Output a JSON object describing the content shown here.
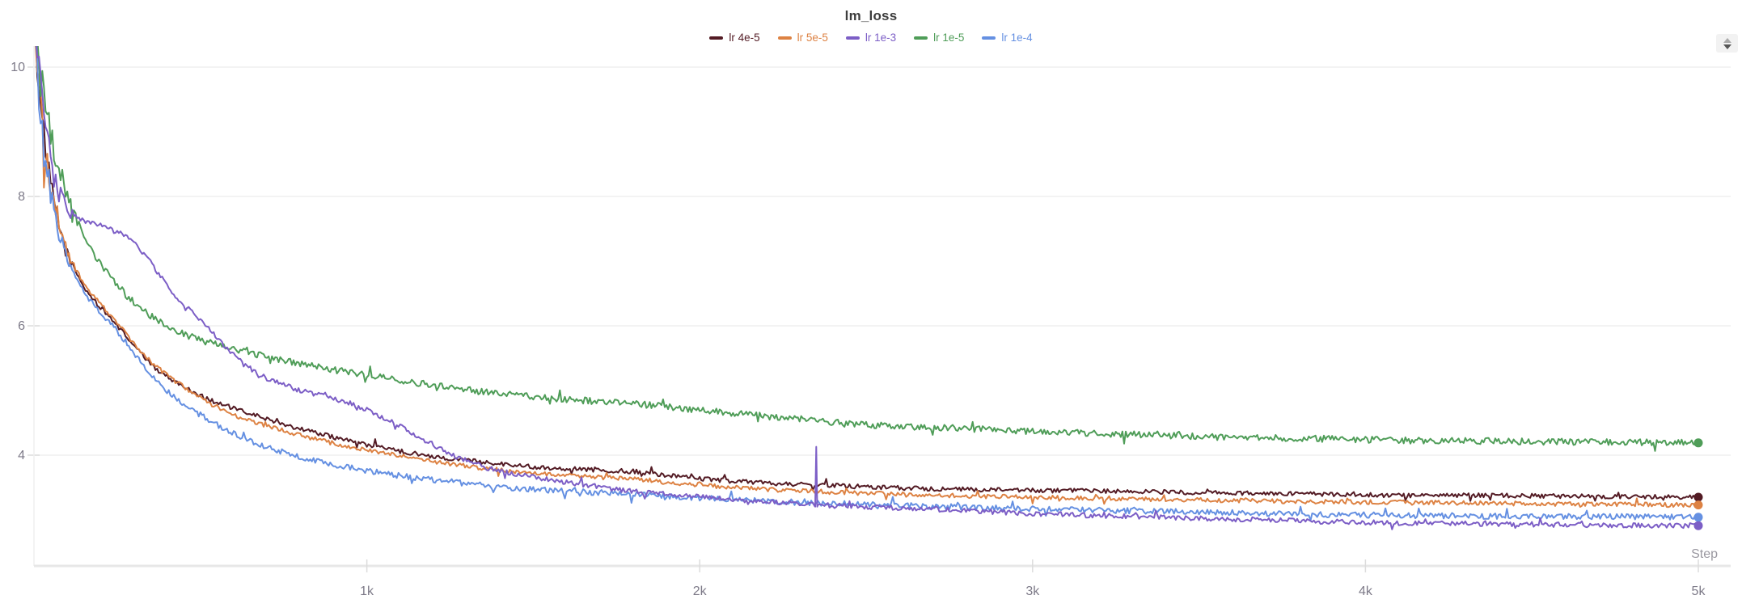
{
  "title": "lm_loss",
  "panel": {
    "toggle_icon": "up-down-triangles-icon"
  },
  "chart_data": {
    "type": "line",
    "title": "lm_loss",
    "xlabel": "Step",
    "ylabel": "",
    "xlim": [
      0,
      5000
    ],
    "ylim": [
      2.3,
      10
    ],
    "grid": "horizontal",
    "legend_position": "top-center",
    "x_ticks": [
      {
        "label": "1k",
        "value": 1000
      },
      {
        "label": "2k",
        "value": 2000
      },
      {
        "label": "3k",
        "value": 3000
      },
      {
        "label": "4k",
        "value": 4000
      },
      {
        "label": "5k",
        "value": 5000
      }
    ],
    "y_ticks": [
      {
        "label": "10",
        "value": 10
      },
      {
        "label": "8",
        "value": 8
      },
      {
        "label": "6",
        "value": 6
      },
      {
        "label": "4",
        "value": 4
      }
    ],
    "series": [
      {
        "name": "lr 4e-5",
        "color": "#531b24",
        "final_value": 3.35,
        "points": [
          [
            0,
            10.6
          ],
          [
            8,
            10.2
          ],
          [
            18,
            9.6
          ],
          [
            30,
            8.9
          ],
          [
            45,
            8.35
          ],
          [
            60,
            7.9
          ],
          [
            80,
            7.45
          ],
          [
            100,
            7.1
          ],
          [
            130,
            6.78
          ],
          [
            160,
            6.52
          ],
          [
            200,
            6.28
          ],
          [
            243,
            6.05
          ],
          [
            280,
            5.82
          ],
          [
            320,
            5.58
          ],
          [
            360,
            5.36
          ],
          [
            400,
            5.22
          ],
          [
            437,
            5.1
          ],
          [
            480,
            4.97
          ],
          [
            540,
            4.83
          ],
          [
            630,
            4.67
          ],
          [
            700,
            4.56
          ],
          [
            800,
            4.41
          ],
          [
            900,
            4.28
          ],
          [
            1000,
            4.16
          ],
          [
            1100,
            4.06
          ],
          [
            1200,
            3.98
          ],
          [
            1300,
            3.92
          ],
          [
            1400,
            3.87
          ],
          [
            1500,
            3.82
          ],
          [
            1600,
            3.79
          ],
          [
            1700,
            3.77
          ],
          [
            1800,
            3.75
          ],
          [
            1900,
            3.69
          ],
          [
            2000,
            3.64
          ],
          [
            2100,
            3.6
          ],
          [
            2200,
            3.57
          ],
          [
            2350,
            3.54
          ],
          [
            2500,
            3.51
          ],
          [
            2700,
            3.48
          ],
          [
            2900,
            3.46
          ],
          [
            3100,
            3.45
          ],
          [
            3300,
            3.44
          ],
          [
            3500,
            3.42
          ],
          [
            3700,
            3.41
          ],
          [
            3900,
            3.39
          ],
          [
            4100,
            3.38
          ],
          [
            4300,
            3.38
          ],
          [
            4500,
            3.37
          ],
          [
            4700,
            3.36
          ],
          [
            5000,
            3.35
          ]
        ]
      },
      {
        "name": "lr 5e-5",
        "color": "#dd8243",
        "final_value": 3.23,
        "points": [
          [
            0,
            10.6
          ],
          [
            8,
            10.1
          ],
          [
            18,
            9.5
          ],
          [
            30,
            8.8
          ],
          [
            45,
            8.3
          ],
          [
            60,
            7.85
          ],
          [
            80,
            7.42
          ],
          [
            100,
            7.12
          ],
          [
            130,
            6.82
          ],
          [
            160,
            6.58
          ],
          [
            200,
            6.33
          ],
          [
            243,
            6.1
          ],
          [
            280,
            5.85
          ],
          [
            320,
            5.6
          ],
          [
            360,
            5.4
          ],
          [
            400,
            5.24
          ],
          [
            437,
            5.1
          ],
          [
            480,
            4.94
          ],
          [
            540,
            4.77
          ],
          [
            630,
            4.56
          ],
          [
            700,
            4.45
          ],
          [
            800,
            4.31
          ],
          [
            900,
            4.18
          ],
          [
            1000,
            4.08
          ],
          [
            1100,
            3.99
          ],
          [
            1200,
            3.9
          ],
          [
            1300,
            3.83
          ],
          [
            1400,
            3.77
          ],
          [
            1500,
            3.72
          ],
          [
            1600,
            3.69
          ],
          [
            1700,
            3.66
          ],
          [
            1800,
            3.64
          ],
          [
            1900,
            3.58
          ],
          [
            2000,
            3.54
          ],
          [
            2100,
            3.5
          ],
          [
            2200,
            3.47
          ],
          [
            2350,
            3.44
          ],
          [
            2500,
            3.41
          ],
          [
            2700,
            3.38
          ],
          [
            2900,
            3.36
          ],
          [
            3100,
            3.34
          ],
          [
            3300,
            3.32
          ],
          [
            3500,
            3.31
          ],
          [
            3700,
            3.29
          ],
          [
            3900,
            3.28
          ],
          [
            4100,
            3.27
          ],
          [
            4300,
            3.26
          ],
          [
            4500,
            3.25
          ],
          [
            4700,
            3.24
          ],
          [
            5000,
            3.23
          ]
        ]
      },
      {
        "name": "lr 1e-3",
        "color": "#7c5ec6",
        "final_value": 2.91,
        "spike": {
          "step": 2350,
          "value": 4.13
        },
        "points": [
          [
            0,
            10.6
          ],
          [
            10,
            10.2
          ],
          [
            25,
            9.5
          ],
          [
            45,
            8.7
          ],
          [
            60,
            8.3
          ],
          [
            80,
            8.0
          ],
          [
            100,
            7.8
          ],
          [
            130,
            7.68
          ],
          [
            160,
            7.6
          ],
          [
            200,
            7.55
          ],
          [
            250,
            7.45
          ],
          [
            300,
            7.32
          ],
          [
            350,
            6.98
          ],
          [
            400,
            6.62
          ],
          [
            437,
            6.4
          ],
          [
            500,
            6.08
          ],
          [
            560,
            5.76
          ],
          [
            630,
            5.4
          ],
          [
            700,
            5.18
          ],
          [
            800,
            5.0
          ],
          [
            900,
            4.88
          ],
          [
            1000,
            4.7
          ],
          [
            1100,
            4.45
          ],
          [
            1200,
            4.16
          ],
          [
            1280,
            3.95
          ],
          [
            1360,
            3.8
          ],
          [
            1450,
            3.7
          ],
          [
            1520,
            3.65
          ],
          [
            1600,
            3.58
          ],
          [
            1700,
            3.5
          ],
          [
            1800,
            3.44
          ],
          [
            1900,
            3.4
          ],
          [
            2000,
            3.36
          ],
          [
            2100,
            3.32
          ],
          [
            2200,
            3.28
          ],
          [
            2300,
            3.25
          ],
          [
            2400,
            3.22
          ],
          [
            2500,
            3.2
          ],
          [
            2700,
            3.16
          ],
          [
            2900,
            3.12
          ],
          [
            3100,
            3.08
          ],
          [
            3300,
            3.05
          ],
          [
            3500,
            3.02
          ],
          [
            3700,
            3.0
          ],
          [
            3900,
            2.97
          ],
          [
            4100,
            2.95
          ],
          [
            4300,
            2.94
          ],
          [
            4500,
            2.93
          ],
          [
            4700,
            2.92
          ],
          [
            5000,
            2.91
          ]
        ]
      },
      {
        "name": "lr 1e-5",
        "color": "#4f9d58",
        "final_value": 4.19,
        "points": [
          [
            0,
            10.6
          ],
          [
            10,
            10.3
          ],
          [
            22,
            9.8
          ],
          [
            35,
            9.3
          ],
          [
            50,
            8.9
          ],
          [
            70,
            8.5
          ],
          [
            90,
            8.15
          ],
          [
            110,
            7.85
          ],
          [
            140,
            7.5
          ],
          [
            170,
            7.2
          ],
          [
            200,
            6.95
          ],
          [
            240,
            6.7
          ],
          [
            280,
            6.46
          ],
          [
            320,
            6.28
          ],
          [
            360,
            6.12
          ],
          [
            400,
            6.0
          ],
          [
            450,
            5.88
          ],
          [
            500,
            5.78
          ],
          [
            560,
            5.69
          ],
          [
            630,
            5.6
          ],
          [
            700,
            5.52
          ],
          [
            800,
            5.42
          ],
          [
            900,
            5.32
          ],
          [
            1000,
            5.24
          ],
          [
            1100,
            5.16
          ],
          [
            1200,
            5.08
          ],
          [
            1300,
            5.01
          ],
          [
            1400,
            4.95
          ],
          [
            1500,
            4.9
          ],
          [
            1600,
            4.86
          ],
          [
            1700,
            4.83
          ],
          [
            1800,
            4.8
          ],
          [
            1900,
            4.75
          ],
          [
            2000,
            4.7
          ],
          [
            2100,
            4.65
          ],
          [
            2200,
            4.6
          ],
          [
            2300,
            4.55
          ],
          [
            2400,
            4.51
          ],
          [
            2500,
            4.47
          ],
          [
            2700,
            4.43
          ],
          [
            2900,
            4.39
          ],
          [
            3100,
            4.35
          ],
          [
            3300,
            4.32
          ],
          [
            3500,
            4.29
          ],
          [
            3700,
            4.27
          ],
          [
            3900,
            4.25
          ],
          [
            4100,
            4.23
          ],
          [
            4300,
            4.22
          ],
          [
            4500,
            4.21
          ],
          [
            4700,
            4.2
          ],
          [
            5000,
            4.19
          ]
        ]
      },
      {
        "name": "lr 1e-4",
        "color": "#6590e2",
        "final_value": 3.04,
        "points": [
          [
            0,
            10.6
          ],
          [
            8,
            10.0
          ],
          [
            18,
            9.3
          ],
          [
            30,
            8.7
          ],
          [
            45,
            8.2
          ],
          [
            60,
            7.78
          ],
          [
            80,
            7.35
          ],
          [
            100,
            7.02
          ],
          [
            130,
            6.7
          ],
          [
            160,
            6.45
          ],
          [
            200,
            6.18
          ],
          [
            243,
            5.97
          ],
          [
            280,
            5.72
          ],
          [
            320,
            5.45
          ],
          [
            360,
            5.2
          ],
          [
            400,
            5.0
          ],
          [
            437,
            4.85
          ],
          [
            480,
            4.68
          ],
          [
            540,
            4.5
          ],
          [
            630,
            4.25
          ],
          [
            700,
            4.12
          ],
          [
            800,
            3.97
          ],
          [
            900,
            3.85
          ],
          [
            1000,
            3.76
          ],
          [
            1100,
            3.68
          ],
          [
            1200,
            3.62
          ],
          [
            1300,
            3.56
          ],
          [
            1400,
            3.51
          ],
          [
            1500,
            3.47
          ],
          [
            1600,
            3.44
          ],
          [
            1700,
            3.42
          ],
          [
            1800,
            3.4
          ],
          [
            1900,
            3.37
          ],
          [
            2000,
            3.34
          ],
          [
            2100,
            3.31
          ],
          [
            2200,
            3.29
          ],
          [
            2350,
            3.26
          ],
          [
            2500,
            3.24
          ],
          [
            2700,
            3.21
          ],
          [
            2900,
            3.18
          ],
          [
            3100,
            3.16
          ],
          [
            3300,
            3.14
          ],
          [
            3500,
            3.12
          ],
          [
            3700,
            3.1
          ],
          [
            3900,
            3.08
          ],
          [
            4100,
            3.07
          ],
          [
            4300,
            3.06
          ],
          [
            4500,
            3.05
          ],
          [
            4700,
            3.05
          ],
          [
            5000,
            3.04
          ]
        ]
      }
    ],
    "colors": {
      "title_text": "#3d3d3d",
      "tick_text": "#7d7a88",
      "axis_label_text": "#9a98a0",
      "gridline": "#efefef",
      "axis_line": "#e7e7e7",
      "tick_mark": "#dcdcdc",
      "background": "#ffffff"
    }
  }
}
